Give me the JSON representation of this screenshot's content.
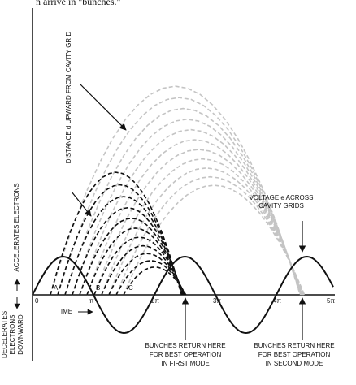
{
  "header": {
    "caption_fragment": "n arrive in \"bunches.\""
  },
  "labels": {
    "distance": "DISTANCE d UPWARD FROM CAVITY GRID",
    "accelerates": "ACCELERATES ELECTRONS",
    "decelerates": [
      "DECELERATES",
      "ELECTRONS",
      "DOWNWARD"
    ],
    "voltage": [
      "VOLTAGE  e  ACROSS",
      "CAVITY GRIDS"
    ],
    "time": "TIME",
    "points": [
      "A",
      "B",
      "C"
    ],
    "axis_ticks": [
      "0",
      "π",
      "2π",
      "3π",
      "4π",
      "5π"
    ],
    "first_mode": [
      "BUNCHES RETURN HERE",
      "FOR BEST OPERATION",
      "IN FIRST MODE"
    ],
    "second_mode": [
      "BUNCHES RETURN HERE",
      "FOR BEST OPERATION",
      "IN SECOND MODE"
    ]
  }
}
